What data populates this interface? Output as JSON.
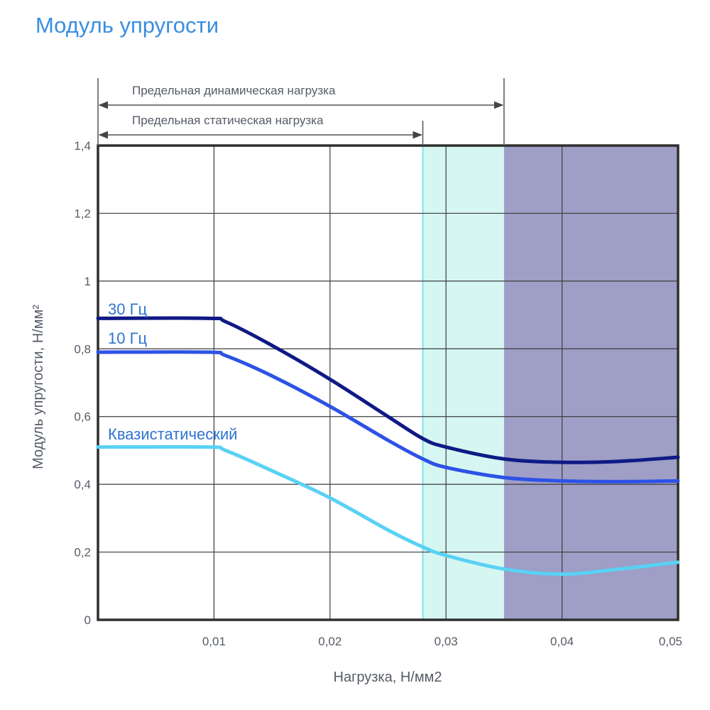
{
  "title": "Модуль упругости",
  "colors": {
    "title": "#3a8ee0",
    "grid": "#3c3c3c",
    "frame": "#2e2e2e",
    "static_zone": "#d6f6f2",
    "static_zone_edge": "#7ee3e8",
    "dynamic_zone": "#9e9ec6",
    "text": "#555c66",
    "label_blue": "#2f74d0"
  },
  "chart_data": {
    "type": "line",
    "title": "Модуль упругости",
    "xlabel": "Нагрузка, Н/мм2",
    "ylabel": "Модуль упругости, Н/мм²",
    "xlim": [
      0,
      0.05
    ],
    "ylim": [
      0,
      1.4
    ],
    "x_ticks": [
      {
        "value": 0.01,
        "label": "0,01"
      },
      {
        "value": 0.02,
        "label": "0,02"
      },
      {
        "value": 0.03,
        "label": "0,03"
      },
      {
        "value": 0.04,
        "label": "0,04"
      },
      {
        "value": 0.05,
        "label": "0,05"
      }
    ],
    "y_ticks": [
      {
        "value": 0,
        "label": "0"
      },
      {
        "value": 0.2,
        "label": "0,2"
      },
      {
        "value": 0.4,
        "label": "0,4"
      },
      {
        "value": 0.6,
        "label": "0,6"
      },
      {
        "value": 0.8,
        "label": "0,8"
      },
      {
        "value": 1.0,
        "label": "1"
      },
      {
        "value": 1.2,
        "label": "1,2"
      },
      {
        "value": 1.4,
        "label": "1,4"
      }
    ],
    "grid": true,
    "ranges": [
      {
        "label": "Предельная динамическая нагрузка",
        "from": 0,
        "to": 0.035
      },
      {
        "label": "Предельная статическая нагрузка",
        "from": 0,
        "to": 0.028
      }
    ],
    "zones": [
      {
        "from": 0.028,
        "to": 0.035,
        "color": "#d6f6f2"
      },
      {
        "from": 0.035,
        "to": 0.05,
        "color": "#9e9ec6"
      }
    ],
    "series": [
      {
        "name": "30 Гц",
        "color": "#0f1a85",
        "x": [
          0,
          0.0095,
          0.011,
          0.015,
          0.02,
          0.025,
          0.028,
          0.03,
          0.035,
          0.04,
          0.045,
          0.05
        ],
        "y": [
          0.89,
          0.89,
          0.88,
          0.81,
          0.71,
          0.6,
          0.535,
          0.51,
          0.475,
          0.465,
          0.468,
          0.48
        ]
      },
      {
        "name": "10 Гц",
        "color": "#2d52e6",
        "x": [
          0,
          0.0095,
          0.011,
          0.015,
          0.02,
          0.025,
          0.028,
          0.03,
          0.035,
          0.04,
          0.045,
          0.05
        ],
        "y": [
          0.79,
          0.79,
          0.78,
          0.72,
          0.63,
          0.53,
          0.475,
          0.45,
          0.42,
          0.41,
          0.408,
          0.41
        ]
      },
      {
        "name": "Квазистатический",
        "color": "#58d2f4",
        "x": [
          0,
          0.0095,
          0.011,
          0.015,
          0.02,
          0.025,
          0.028,
          0.03,
          0.035,
          0.04,
          0.045,
          0.05
        ],
        "y": [
          0.51,
          0.51,
          0.5,
          0.44,
          0.36,
          0.265,
          0.215,
          0.19,
          0.15,
          0.135,
          0.15,
          0.17
        ]
      }
    ]
  }
}
